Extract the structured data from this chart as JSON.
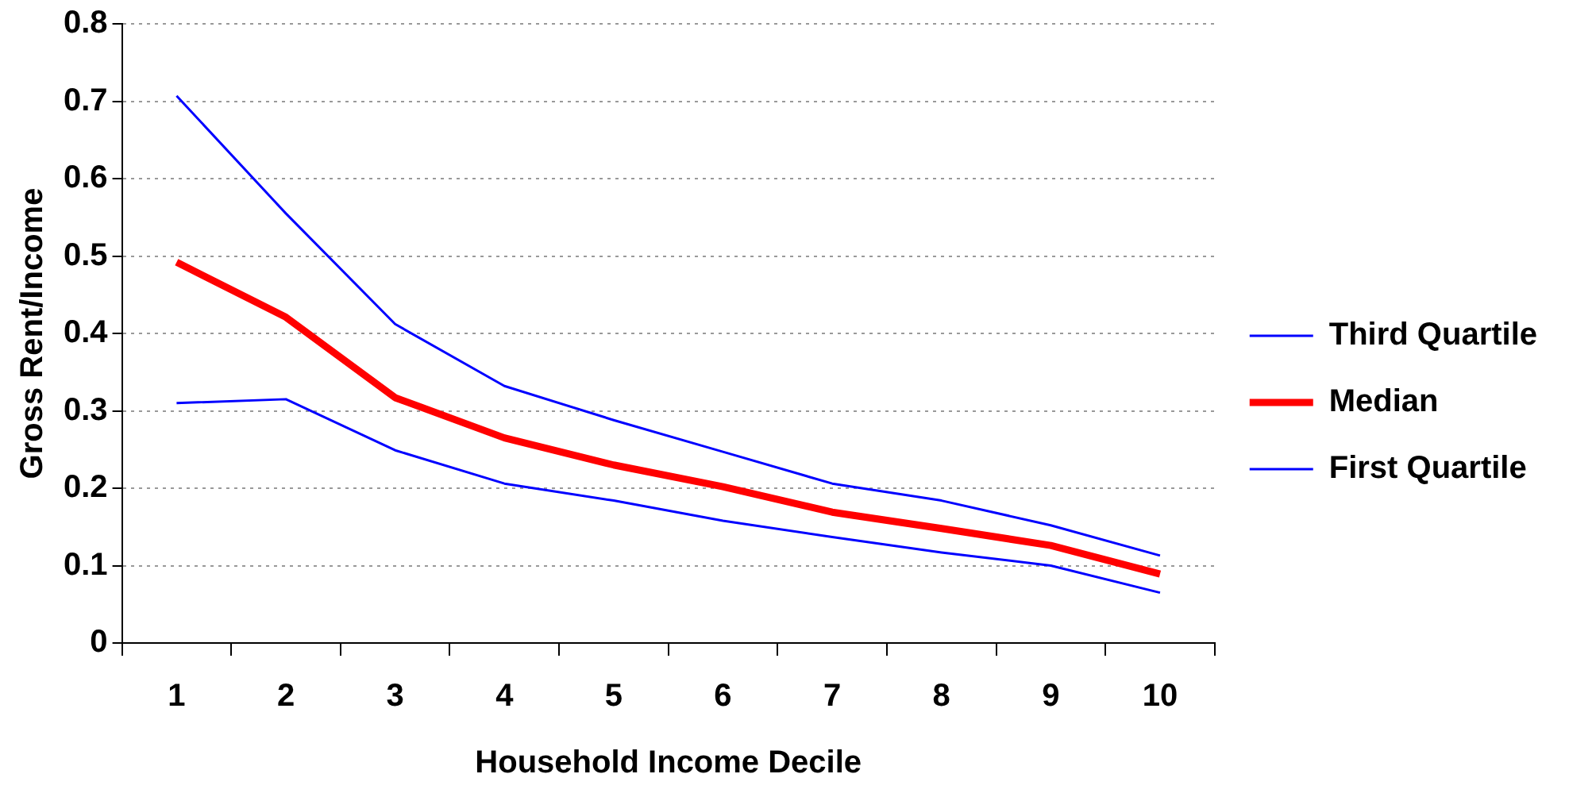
{
  "chart_data": {
    "type": "line",
    "xlabel": "Household Income Decile",
    "ylabel": "Gross Rent/Income",
    "categories": [
      "1",
      "2",
      "3",
      "4",
      "5",
      "6",
      "7",
      "8",
      "9",
      "10"
    ],
    "series": [
      {
        "name": "Third Quartile",
        "color": "#0000ff",
        "values": [
          0.707,
          0.555,
          0.412,
          0.332,
          0.288,
          0.247,
          0.206,
          0.184,
          0.152,
          0.113
        ]
      },
      {
        "name": "Median",
        "color": "#ff0000",
        "values": [
          0.492,
          0.421,
          0.317,
          0.265,
          0.23,
          0.202,
          0.169,
          0.148,
          0.126,
          0.089
        ]
      },
      {
        "name": "First Quartile",
        "color": "#0000ff",
        "values": [
          0.31,
          0.315,
          0.249,
          0.206,
          0.184,
          0.158,
          0.137,
          0.117,
          0.1,
          0.065
        ]
      }
    ],
    "ylim": [
      0,
      0.8
    ],
    "yticks": [
      0,
      0.1,
      0.2,
      0.3,
      0.4,
      0.5,
      0.6,
      0.7,
      0.8
    ],
    "grid": "y",
    "legend": "right",
    "marker": "none",
    "line_style": "solid"
  }
}
